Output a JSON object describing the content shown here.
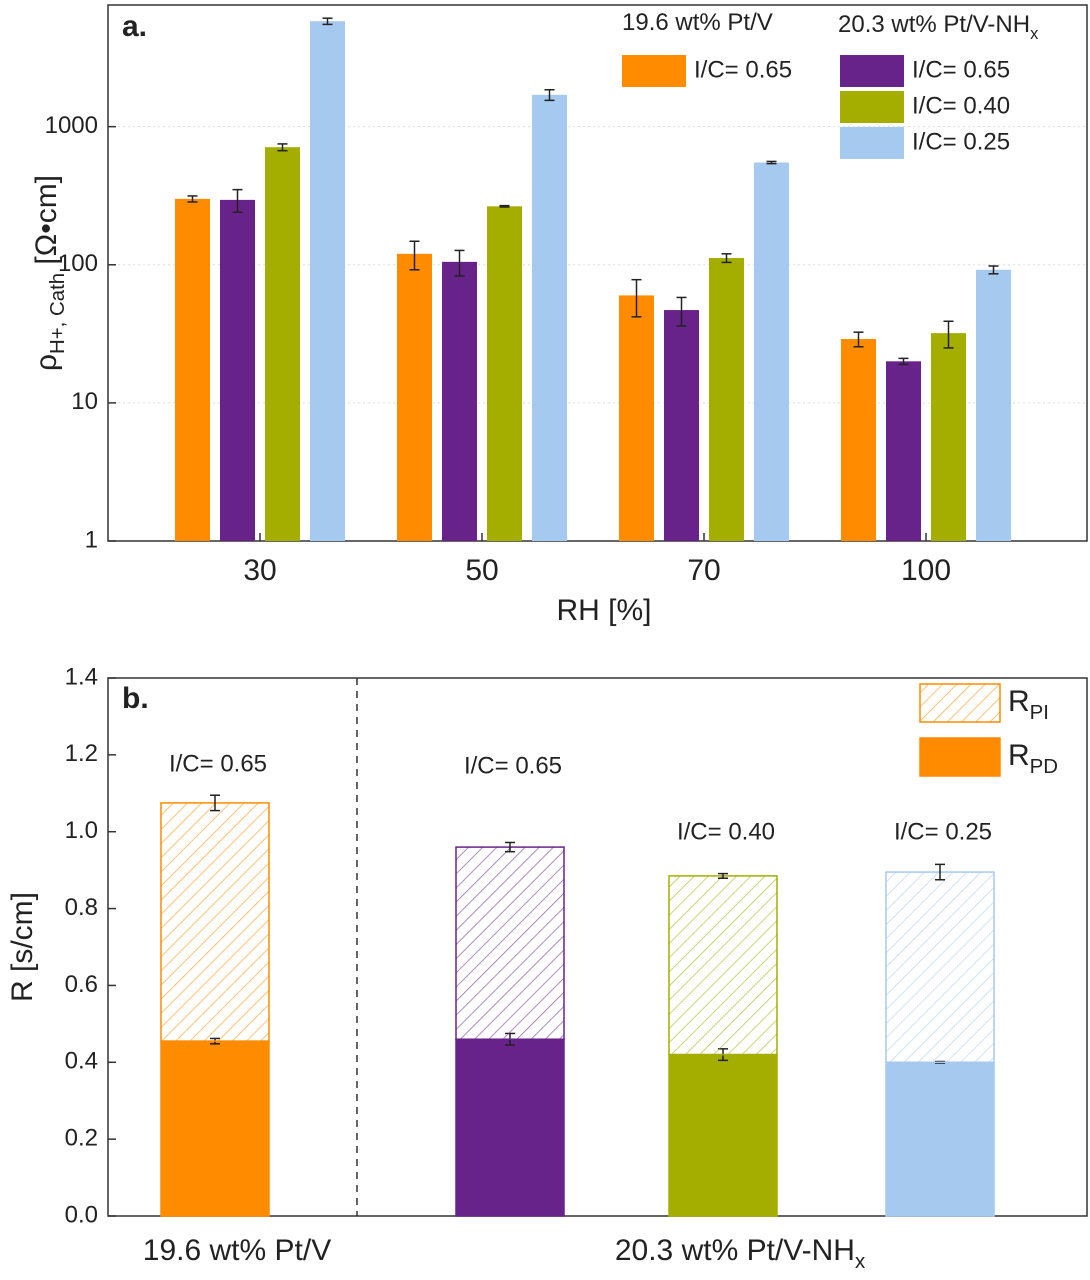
{
  "chart_data": [
    {
      "type": "log_grouped_bar",
      "panel_label": "a.",
      "y_label": {
        "text": "ρ",
        "sub": "H+, Cath",
        "after": " [Ω•cm]"
      },
      "x_label": "RH [%]",
      "categories": [
        "30",
        "50",
        "70",
        "100"
      ],
      "log_y": true,
      "ylim": [
        1,
        7600
      ],
      "yticks": [
        1,
        10,
        100,
        1000
      ],
      "grid": true,
      "legend_titles": [
        {
          "text": "19.6 wt% Pt/V"
        },
        {
          "text": "20.3 wt% Pt/V-NH",
          "sub": "x"
        }
      ],
      "series": [
        {
          "name": "I/C= 0.65",
          "group": 0,
          "color": "#ff8c00",
          "values": [
            300,
            120,
            60,
            29
          ],
          "errors": [
            15,
            28,
            18,
            3.5
          ]
        },
        {
          "name": "I/C= 0.65",
          "group": 1,
          "color": "#68238a",
          "values": [
            295,
            105,
            47,
            20
          ],
          "errors": [
            55,
            22,
            11,
            1
          ]
        },
        {
          "name": "I/C= 0.40",
          "group": 1,
          "color": "#a3ae00",
          "values": [
            710,
            265,
            112,
            32
          ],
          "errors": [
            40,
            3,
            8,
            7
          ]
        },
        {
          "name": "I/C= 0.25",
          "group": 1,
          "color": "#a6c9ef",
          "values": [
            5800,
            1700,
            550,
            92
          ],
          "errors": [
            300,
            150,
            10,
            6
          ]
        }
      ]
    },
    {
      "type": "stacked_bar",
      "panel_label": "b.",
      "y_label": "R [s/cm]",
      "categories": [
        null,
        null,
        null,
        null
      ],
      "colors": [
        "#ff8c00",
        "#68238a",
        "#a3ae00",
        "#a6c9ef"
      ],
      "annotations": [
        "I/C= 0.65",
        "I/C= 0.65",
        "I/C= 0.40",
        "I/C= 0.25"
      ],
      "x_group_labels": [
        {
          "text": "19.6 wt% Pt/V"
        },
        {
          "text": "20.3 wt% Pt/V-NH",
          "sub": "x"
        }
      ],
      "ylim": [
        0,
        1.4
      ],
      "yticks": [
        {
          "value": 0,
          "label": "0.0"
        },
        0.2,
        0.4,
        0.6,
        0.8,
        {
          "value": 1,
          "label": "1.0"
        },
        1.2,
        1.4
      ],
      "legend": "upper right",
      "series": [
        {
          "name": {
            "text": "R",
            "sub": "PD"
          },
          "style": "solid",
          "values": [
            0.455,
            0.46,
            0.42,
            0.4
          ],
          "errors": [
            0.007,
            0.015,
            0.015,
            0.002
          ]
        },
        {
          "name": {
            "text": "R",
            "sub": "PI"
          },
          "style": "hatched",
          "values": [
            0.62,
            0.5,
            0.465,
            0.495
          ],
          "errors": [
            0.02,
            0.012,
            0.006,
            0.02
          ]
        }
      ]
    }
  ]
}
